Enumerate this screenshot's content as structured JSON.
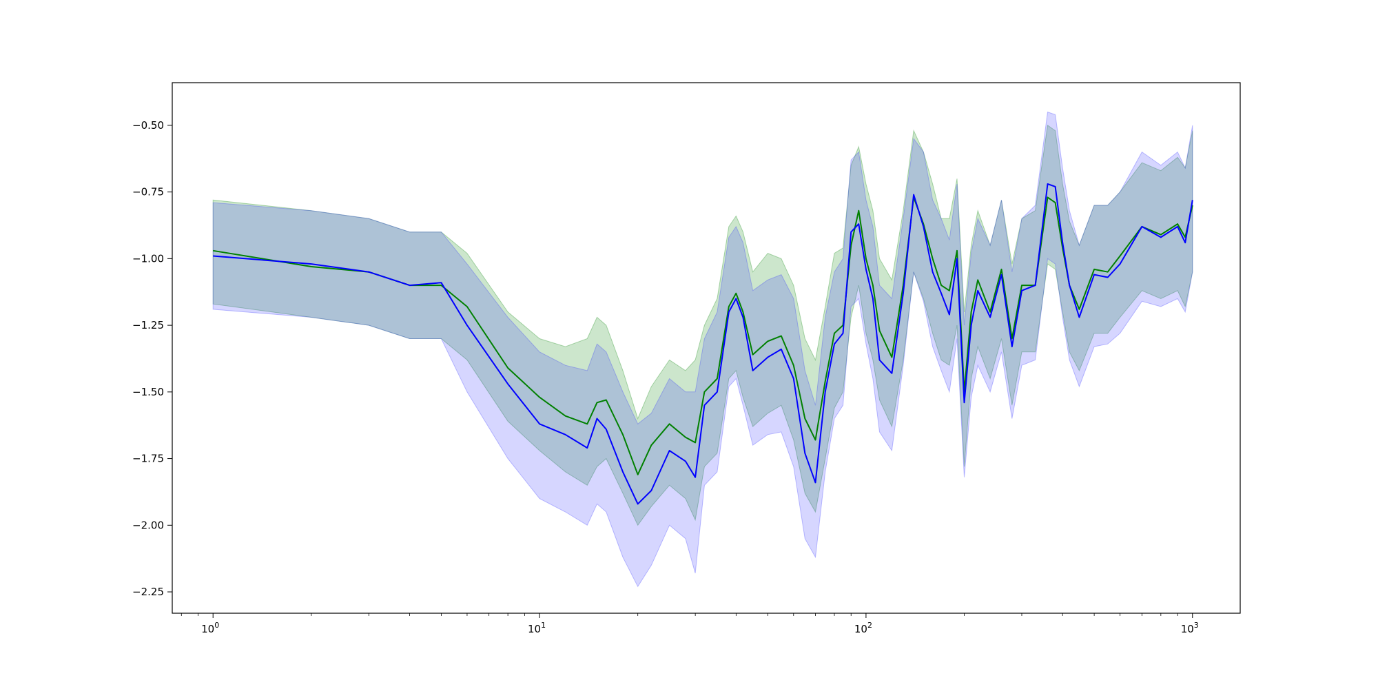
{
  "chart_data": {
    "type": "line",
    "title": "",
    "xlabel": "",
    "ylabel": "",
    "xscale": "log",
    "xlim": [
      0.75,
      1400
    ],
    "ylim": [
      -2.33,
      -0.34
    ],
    "grid": false,
    "legend": "none",
    "x_tick_labels": [
      {
        "base": "10",
        "exp": "0",
        "value": 1
      },
      {
        "base": "10",
        "exp": "1",
        "value": 10
      },
      {
        "base": "10",
        "exp": "2",
        "value": 100
      },
      {
        "base": "10",
        "exp": "3",
        "value": 1000
      }
    ],
    "y_ticks": [
      -0.5,
      -0.75,
      -1.0,
      -1.25,
      -1.5,
      -1.75,
      -2.0,
      -2.25
    ],
    "y_tick_labels": [
      "−0.50",
      "−0.75",
      "−1.00",
      "−1.25",
      "−1.50",
      "−1.75",
      "−2.00",
      "−2.25"
    ],
    "series": [
      {
        "color": "#008000",
        "band_color": "#008000",
        "x": [
          1,
          2,
          3,
          4,
          5,
          6,
          8,
          10,
          12,
          14,
          15,
          16,
          18,
          20,
          22,
          25,
          28,
          30,
          32,
          35,
          38,
          40,
          42,
          45,
          50,
          55,
          60,
          65,
          70,
          75,
          80,
          85,
          90,
          95,
          100,
          105,
          110,
          120,
          130,
          140,
          150,
          160,
          170,
          180,
          190,
          200,
          210,
          220,
          240,
          260,
          280,
          300,
          330,
          360,
          380,
          400,
          420,
          450,
          500,
          550,
          600,
          700,
          800,
          900,
          950,
          1000
        ],
        "values": [
          -0.97,
          -1.03,
          -1.05,
          -1.1,
          -1.1,
          -1.18,
          -1.41,
          -1.52,
          -1.59,
          -1.62,
          -1.54,
          -1.53,
          -1.66,
          -1.81,
          -1.7,
          -1.62,
          -1.67,
          -1.69,
          -1.5,
          -1.45,
          -1.18,
          -1.13,
          -1.2,
          -1.36,
          -1.31,
          -1.29,
          -1.4,
          -1.6,
          -1.68,
          -1.46,
          -1.28,
          -1.25,
          -0.95,
          -0.82,
          -1.0,
          -1.1,
          -1.27,
          -1.37,
          -1.1,
          -0.77,
          -0.87,
          -1.0,
          -1.1,
          -1.12,
          -0.97,
          -1.5,
          -1.2,
          -1.08,
          -1.2,
          -1.04,
          -1.3,
          -1.1,
          -1.1,
          -0.77,
          -0.79,
          -0.96,
          -1.1,
          -1.19,
          -1.04,
          -1.05,
          -0.99,
          -0.88,
          -0.91,
          -0.87,
          -0.92,
          -0.8
        ],
        "lower": [
          -1.17,
          -1.22,
          -1.25,
          -1.3,
          -1.3,
          -1.38,
          -1.61,
          -1.72,
          -1.8,
          -1.85,
          -1.78,
          -1.75,
          -1.88,
          -2.0,
          -1.93,
          -1.85,
          -1.9,
          -1.98,
          -1.78,
          -1.73,
          -1.45,
          -1.42,
          -1.52,
          -1.63,
          -1.58,
          -1.55,
          -1.68,
          -1.88,
          -1.95,
          -1.75,
          -1.56,
          -1.5,
          -1.22,
          -1.1,
          -1.28,
          -1.38,
          -1.53,
          -1.63,
          -1.38,
          -1.05,
          -1.15,
          -1.28,
          -1.38,
          -1.4,
          -1.25,
          -1.78,
          -1.45,
          -1.33,
          -1.45,
          -1.3,
          -1.55,
          -1.35,
          -1.35,
          -1.02,
          -1.04,
          -1.2,
          -1.35,
          -1.42,
          -1.28,
          -1.28,
          -1.22,
          -1.12,
          -1.15,
          -1.12,
          -1.18,
          -1.05
        ],
        "upper": [
          -0.78,
          -0.82,
          -0.85,
          -0.9,
          -0.9,
          -0.98,
          -1.2,
          -1.3,
          -1.33,
          -1.3,
          -1.22,
          -1.25,
          -1.42,
          -1.6,
          -1.48,
          -1.38,
          -1.42,
          -1.38,
          -1.25,
          -1.15,
          -0.88,
          -0.84,
          -0.9,
          -1.05,
          -0.98,
          -1.0,
          -1.1,
          -1.3,
          -1.38,
          -1.18,
          -0.98,
          -0.96,
          -0.65,
          -0.58,
          -0.72,
          -0.82,
          -1.0,
          -1.08,
          -0.82,
          -0.52,
          -0.6,
          -0.72,
          -0.85,
          -0.85,
          -0.7,
          -1.2,
          -0.95,
          -0.82,
          -0.95,
          -0.78,
          -1.02,
          -0.85,
          -0.82,
          -0.5,
          -0.52,
          -0.72,
          -0.86,
          -0.95,
          -0.8,
          -0.8,
          -0.75,
          -0.64,
          -0.67,
          -0.62,
          -0.66,
          -0.52
        ]
      },
      {
        "color": "#0000ff",
        "band_color": "#3333ff",
        "x": [
          1,
          2,
          3,
          4,
          5,
          6,
          8,
          10,
          12,
          14,
          15,
          16,
          18,
          20,
          22,
          25,
          28,
          30,
          32,
          35,
          38,
          40,
          42,
          45,
          50,
          55,
          60,
          65,
          70,
          75,
          80,
          85,
          90,
          95,
          100,
          105,
          110,
          120,
          130,
          140,
          150,
          160,
          170,
          180,
          190,
          200,
          210,
          220,
          240,
          260,
          280,
          300,
          330,
          360,
          380,
          400,
          420,
          450,
          500,
          550,
          600,
          700,
          800,
          900,
          950,
          1000
        ],
        "values": [
          -0.99,
          -1.02,
          -1.05,
          -1.1,
          -1.09,
          -1.25,
          -1.47,
          -1.62,
          -1.66,
          -1.71,
          -1.6,
          -1.64,
          -1.8,
          -1.92,
          -1.87,
          -1.72,
          -1.76,
          -1.82,
          -1.55,
          -1.5,
          -1.2,
          -1.15,
          -1.22,
          -1.42,
          -1.37,
          -1.34,
          -1.45,
          -1.73,
          -1.84,
          -1.5,
          -1.32,
          -1.28,
          -0.9,
          -0.87,
          -1.04,
          -1.15,
          -1.38,
          -1.43,
          -1.13,
          -0.76,
          -0.88,
          -1.05,
          -1.13,
          -1.21,
          -1.0,
          -1.54,
          -1.25,
          -1.12,
          -1.22,
          -1.06,
          -1.33,
          -1.12,
          -1.1,
          -0.72,
          -0.73,
          -0.94,
          -1.1,
          -1.22,
          -1.06,
          -1.07,
          -1.02,
          -0.88,
          -0.92,
          -0.88,
          -0.94,
          -0.78
        ],
        "lower": [
          -1.19,
          -1.22,
          -1.25,
          -1.3,
          -1.3,
          -1.5,
          -1.75,
          -1.9,
          -1.95,
          -2.0,
          -1.92,
          -1.95,
          -2.12,
          -2.23,
          -2.15,
          -2.0,
          -2.05,
          -2.18,
          -1.85,
          -1.8,
          -1.48,
          -1.45,
          -1.55,
          -1.7,
          -1.66,
          -1.65,
          -1.78,
          -2.05,
          -2.12,
          -1.8,
          -1.6,
          -1.55,
          -1.18,
          -1.15,
          -1.32,
          -1.45,
          -1.65,
          -1.72,
          -1.4,
          -1.05,
          -1.16,
          -1.33,
          -1.42,
          -1.5,
          -1.3,
          -1.82,
          -1.52,
          -1.4,
          -1.5,
          -1.35,
          -1.6,
          -1.4,
          -1.38,
          -1.0,
          -1.02,
          -1.22,
          -1.38,
          -1.48,
          -1.33,
          -1.32,
          -1.28,
          -1.16,
          -1.18,
          -1.15,
          -1.2,
          -1.05
        ],
        "upper": [
          -0.79,
          -0.82,
          -0.85,
          -0.9,
          -0.9,
          -1.02,
          -1.22,
          -1.35,
          -1.4,
          -1.42,
          -1.32,
          -1.35,
          -1.5,
          -1.62,
          -1.58,
          -1.45,
          -1.5,
          -1.5,
          -1.3,
          -1.2,
          -0.92,
          -0.88,
          -0.94,
          -1.12,
          -1.08,
          -1.06,
          -1.15,
          -1.42,
          -1.55,
          -1.22,
          -1.05,
          -1.0,
          -0.63,
          -0.6,
          -0.78,
          -0.88,
          -1.1,
          -1.15,
          -0.85,
          -0.55,
          -0.6,
          -0.78,
          -0.85,
          -0.93,
          -0.72,
          -1.25,
          -0.98,
          -0.85,
          -0.95,
          -0.78,
          -1.05,
          -0.85,
          -0.8,
          -0.45,
          -0.46,
          -0.66,
          -0.82,
          -0.95,
          -0.8,
          -0.8,
          -0.75,
          -0.6,
          -0.65,
          -0.6,
          -0.66,
          -0.5
        ]
      }
    ]
  }
}
